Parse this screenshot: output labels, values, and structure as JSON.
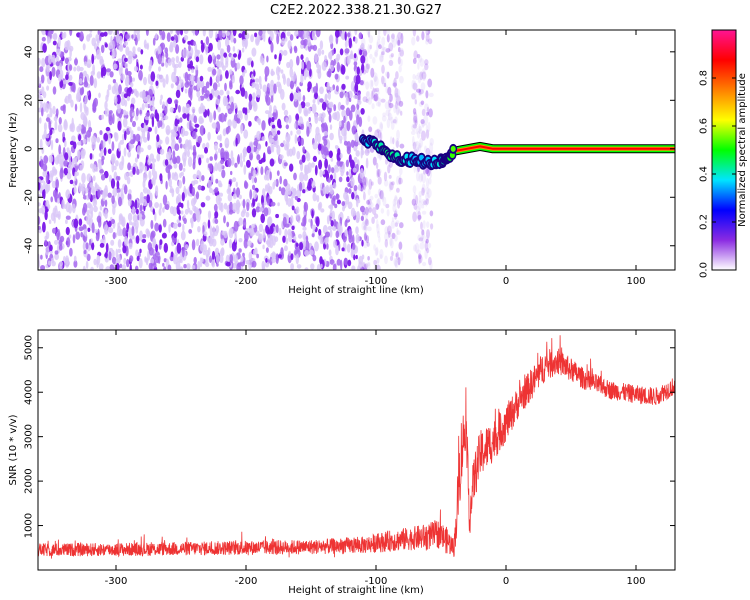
{
  "title": "C2E2.2022.338.21.30.G27",
  "chart_data": [
    {
      "type": "heatmap",
      "xlabel": "Height of straight line (km)",
      "ylabel": "Frequency (Hz)",
      "xlim": [
        -360,
        130
      ],
      "ylim": [
        -50,
        49
      ],
      "x_ticks": [
        "-300",
        "-200",
        "-100",
        "0",
        "100"
      ],
      "y_ticks": [
        "40",
        "20",
        "0",
        "-20",
        "-40"
      ],
      "colorbar": {
        "label": "Normalized spectral amplitude",
        "range": [
          0,
          1
        ],
        "ticks": [
          "0.0",
          "0.2",
          "0.4",
          "0.6",
          "0.8"
        ],
        "colors": [
          "#ffffff",
          "#8a2be2",
          "#0000ff",
          "#00e5ff",
          "#00ff00",
          "#ffff00",
          "#ff8000",
          "#ff0000",
          "#ff1493"
        ]
      },
      "noise_region_x": [
        -360,
        -57
      ],
      "noise_gap_x": [
        -80,
        -72
      ],
      "signal_track": [
        {
          "x": -110,
          "f": 3,
          "amp": 0.35
        },
        {
          "x": -100,
          "f": 2,
          "amp": 0.4
        },
        {
          "x": -90,
          "f": -2,
          "amp": 0.45
        },
        {
          "x": -80,
          "f": -5,
          "amp": 0.4
        },
        {
          "x": -70,
          "f": -4,
          "amp": 0.35
        },
        {
          "x": -60,
          "f": -6,
          "amp": 0.35
        },
        {
          "x": -50,
          "f": -5,
          "amp": 0.4
        },
        {
          "x": -45,
          "f": -3,
          "amp": 0.45
        },
        {
          "x": -40,
          "f": -1,
          "amp": 0.55
        },
        {
          "x": -30,
          "f": 0,
          "amp": 0.75
        },
        {
          "x": -20,
          "f": 1,
          "amp": 0.85
        },
        {
          "x": -10,
          "f": 0,
          "amp": 0.95
        },
        {
          "x": 0,
          "f": 0,
          "amp": 1.0
        },
        {
          "x": 50,
          "f": 0,
          "amp": 1.0
        },
        {
          "x": 130,
          "f": 0,
          "amp": 1.0
        }
      ]
    },
    {
      "type": "line",
      "xlabel": "Height of straight line (km)",
      "ylabel": "SNR (10 * v/v)",
      "xlim": [
        -360,
        130
      ],
      "ylim": [
        0,
        5400
      ],
      "x_ticks": [
        "-300",
        "-200",
        "-100",
        "0",
        "100"
      ],
      "y_ticks": [
        "5000",
        "4000",
        "3000",
        "2000",
        "1000"
      ],
      "series": [
        {
          "color": "#ee3333",
          "points": [
            {
              "x": -360,
              "y": 450,
              "spread": 250
            },
            {
              "x": -300,
              "y": 460,
              "spread": 250
            },
            {
              "x": -250,
              "y": 480,
              "spread": 260
            },
            {
              "x": -200,
              "y": 500,
              "spread": 270
            },
            {
              "x": -150,
              "y": 520,
              "spread": 280
            },
            {
              "x": -110,
              "y": 560,
              "spread": 320
            },
            {
              "x": -90,
              "y": 650,
              "spread": 400
            },
            {
              "x": -70,
              "y": 720,
              "spread": 450
            },
            {
              "x": -60,
              "y": 750,
              "spread": 500
            },
            {
              "x": -52,
              "y": 820,
              "spread": 550
            },
            {
              "x": -45,
              "y": 650,
              "spread": 500
            },
            {
              "x": -40,
              "y": 500,
              "spread": 350
            },
            {
              "x": -38,
              "y": 1200,
              "spread": 900
            },
            {
              "x": -35,
              "y": 2500,
              "spread": 1500
            },
            {
              "x": -31,
              "y": 3300,
              "spread": 900
            },
            {
              "x": -28,
              "y": 1200,
              "spread": 800
            },
            {
              "x": -25,
              "y": 2000,
              "spread": 900
            },
            {
              "x": -20,
              "y": 2600,
              "spread": 900
            },
            {
              "x": -10,
              "y": 2900,
              "spread": 800
            },
            {
              "x": 0,
              "y": 3300,
              "spread": 700
            },
            {
              "x": 10,
              "y": 3800,
              "spread": 600
            },
            {
              "x": 20,
              "y": 4200,
              "spread": 600
            },
            {
              "x": 30,
              "y": 4600,
              "spread": 600
            },
            {
              "x": 40,
              "y": 4700,
              "spread": 500
            },
            {
              "x": 50,
              "y": 4500,
              "spread": 450
            },
            {
              "x": 60,
              "y": 4300,
              "spread": 400
            },
            {
              "x": 80,
              "y": 4050,
              "spread": 350
            },
            {
              "x": 100,
              "y": 3950,
              "spread": 350
            },
            {
              "x": 115,
              "y": 3900,
              "spread": 350
            },
            {
              "x": 130,
              "y": 4150,
              "spread": 350
            }
          ]
        }
      ]
    }
  ]
}
